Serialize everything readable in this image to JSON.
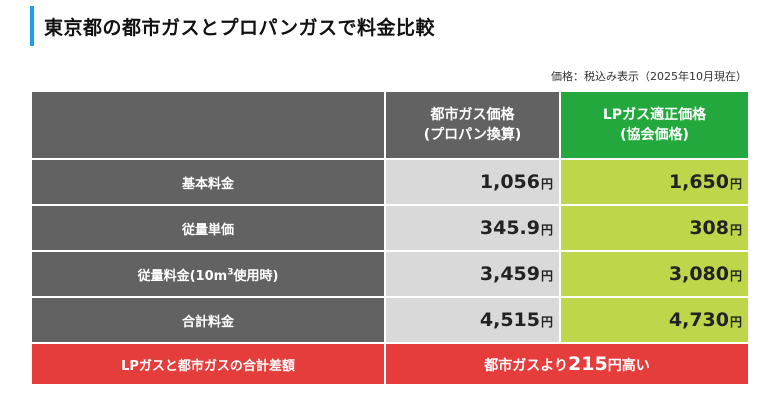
{
  "title": "東京都の都市ガスとプロパンガスで料金比較",
  "note": "価格：税込み表示（2025年10月現在）",
  "header": {
    "city_line1": "都市ガス価格",
    "city_line2": "(プロパン換算)",
    "lp_line1": "LPガス適正価格",
    "lp_line2": "(協会価格)"
  },
  "rows": [
    {
      "label": "基本料金",
      "city": "1,056",
      "lp": "1,650",
      "unit": "円"
    },
    {
      "label": "従量単価",
      "city": "345.9",
      "lp": "308",
      "unit": "円"
    },
    {
      "label_prefix": "従量料金(10m",
      "label_sup": "3",
      "label_suffix": "使用時)",
      "city": "3,459",
      "lp": "3,080",
      "unit": "円"
    },
    {
      "label": "合計料金",
      "city": "4,515",
      "lp": "4,730",
      "unit": "円"
    }
  ],
  "difference": {
    "label": "LPガスと都市ガスの合計差額",
    "prefix": "都市ガスより",
    "amount": "215",
    "unit": "円",
    "suffix": "高い"
  },
  "colors": {
    "accent_bar": "#1ea0e6",
    "header_gray": "#626262",
    "lp_green": "#22a83c",
    "city_cell": "#d9d9d9",
    "lp_cell": "#bed64a",
    "diff_red": "#e43d3c"
  }
}
